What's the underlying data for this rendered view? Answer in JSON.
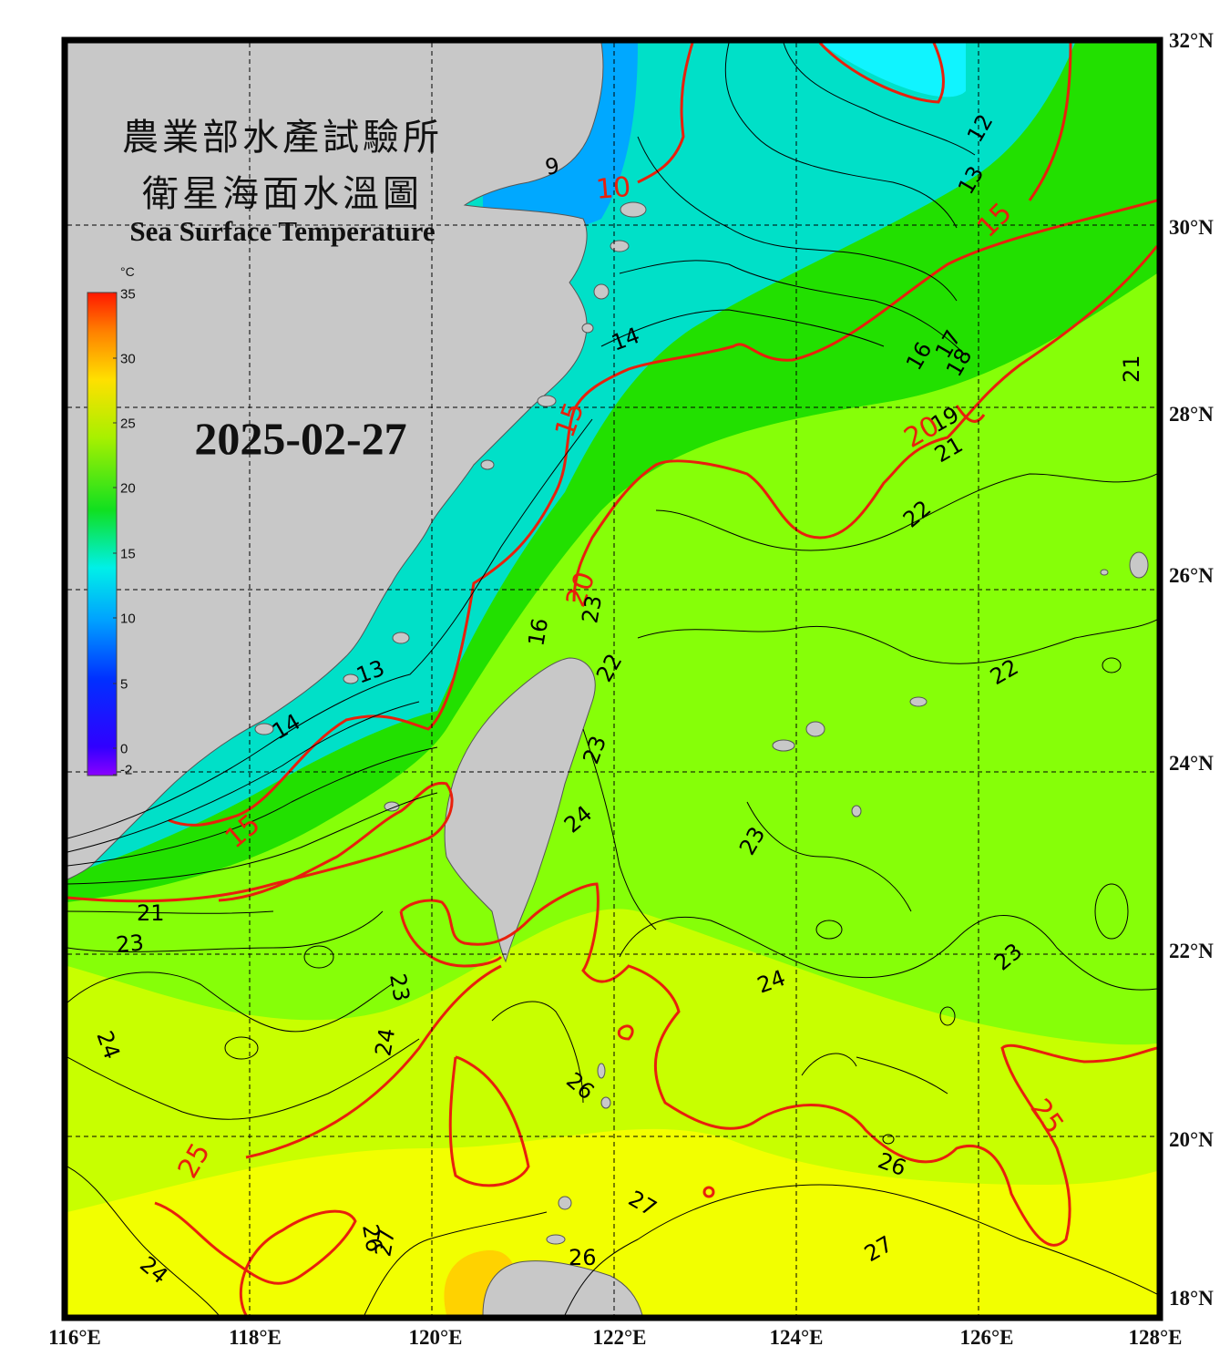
{
  "title": {
    "zh_line1": "農業部水產試驗所",
    "zh_line2": "衛星海面水溫圖",
    "en": "Sea Surface Temperature"
  },
  "date": "2025-02-27",
  "colorbar": {
    "unit": "°C",
    "ticks": [
      "35",
      "30",
      "25",
      "20",
      "15",
      "10",
      "5",
      "0",
      "-2"
    ]
  },
  "axes": {
    "longitude_labels": [
      "116°E",
      "118°E",
      "120°E",
      "122°E",
      "124°E",
      "126°E",
      "128°E"
    ],
    "latitude_labels": [
      "32°N",
      "30°N",
      "28°N",
      "26°N",
      "24°N",
      "22°N",
      "20°N",
      "18°N"
    ]
  },
  "contour_labels": {
    "red": [
      "10",
      "15",
      "15",
      "15",
      "20",
      "20",
      "25",
      "25"
    ],
    "black": [
      "9",
      "12",
      "13",
      "14",
      "16",
      "17",
      "18",
      "19",
      "21",
      "21",
      "22",
      "22",
      "22",
      "23",
      "23",
      "23",
      "23",
      "23",
      "24",
      "24",
      "24",
      "24",
      "24",
      "26",
      "26",
      "26",
      "26",
      "27",
      "27",
      "27",
      "16",
      "13",
      "14",
      "21",
      "23"
    ]
  },
  "colors": {
    "land": "#c8c8c8",
    "frame": "#000000",
    "isotherm_major": "#e8200c",
    "isotherm_minor": "#000000",
    "cold_water": "#1a7fff",
    "cool_water": "#00e5ff",
    "mid_water": "#19d900",
    "warm_water": "#80ff00",
    "hot_water": "#ffff00"
  }
}
